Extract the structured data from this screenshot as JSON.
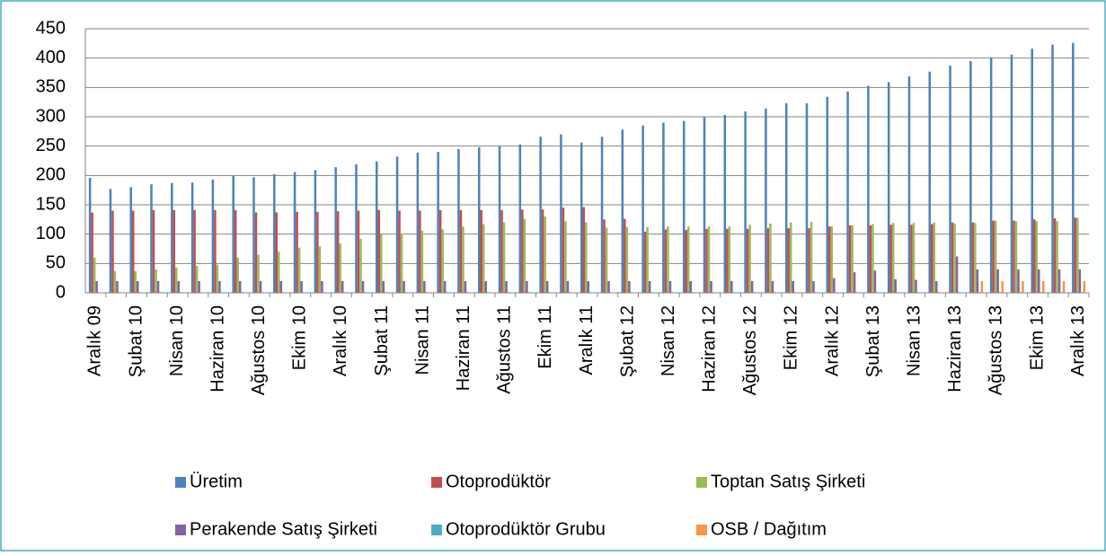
{
  "chart_data": {
    "type": "bar",
    "categories": [
      "Aralık 09",
      null,
      "Şubat 10",
      null,
      "Nisan 10",
      null,
      "Haziran 10",
      null,
      "Ağustos 10",
      null,
      "Ekim 10",
      null,
      "Aralık 10",
      null,
      "Şubat 11",
      null,
      "Nisan 11",
      null,
      "Haziran 11",
      null,
      "Ağustos 11",
      null,
      "Ekim 11",
      null,
      "Aralık 11",
      null,
      "Şubat 12",
      null,
      "Nisan 12",
      null,
      "Haziran 12",
      null,
      "Ağustos 12",
      null,
      "Ekim 12",
      null,
      "Aralık 12",
      null,
      "Şubat 13",
      null,
      "Nisan 13",
      null,
      "Haziran 13",
      null,
      "Ağustos 13",
      null,
      "Ekim 13",
      null,
      "Aralık 13"
    ],
    "series": [
      {
        "name": "Üretim",
        "color": "#4f81bd",
        "values": [
          196,
          177,
          180,
          185,
          187,
          188,
          193,
          199,
          197,
          202,
          206,
          209,
          214,
          219,
          224,
          232,
          239,
          240,
          245,
          248,
          250,
          253,
          266,
          270,
          256,
          266,
          278,
          285,
          290,
          293,
          300,
          303,
          309,
          314,
          323,
          323,
          334,
          343,
          353,
          359,
          369,
          377,
          387,
          395,
          401,
          406,
          416,
          423,
          426
        ]
      },
      {
        "name": "Otoprodüktör",
        "color": "#c0504d",
        "values": [
          137,
          140,
          140,
          141,
          141,
          141,
          141,
          141,
          137,
          137,
          138,
          138,
          139,
          140,
          141,
          140,
          140,
          141,
          141,
          141,
          141,
          142,
          142,
          145,
          146,
          125,
          126,
          104,
          108,
          107,
          109,
          109,
          109,
          110,
          110,
          110,
          113,
          115,
          115,
          116,
          116,
          117,
          120,
          120,
          123,
          123,
          125,
          127,
          128
        ]
      },
      {
        "name": "Toptan Satış Şirketi",
        "color": "#9bbb59",
        "values": [
          60,
          37,
          37,
          40,
          43,
          46,
          48,
          60,
          65,
          70,
          77,
          79,
          84,
          92,
          100,
          101,
          106,
          108,
          113,
          117,
          120,
          126,
          130,
          122,
          120,
          111,
          112,
          112,
          113,
          113,
          113,
          113,
          116,
          118,
          120,
          121,
          113,
          115,
          117,
          119,
          119,
          120,
          118,
          119,
          123,
          122,
          122,
          122,
          128
        ]
      },
      {
        "name": "Perakende Satış Şirketi",
        "color": "#8064a2",
        "values": [
          20,
          20,
          20,
          20,
          20,
          20,
          20,
          20,
          20,
          20,
          20,
          20,
          20,
          20,
          20,
          20,
          20,
          20,
          20,
          20,
          20,
          20,
          20,
          20,
          20,
          20,
          20,
          20,
          20,
          20,
          20,
          20,
          20,
          20,
          20,
          20,
          25,
          35,
          38,
          23,
          22,
          20,
          62,
          40,
          40,
          40,
          40,
          40,
          40
        ]
      },
      {
        "name": "Otoprodüktör Grubu",
        "color": "#4bacc6",
        "values": [
          1,
          1,
          1,
          1,
          1,
          1,
          1,
          1,
          1,
          1,
          1,
          1,
          1,
          1,
          1,
          1,
          1,
          1,
          1,
          1,
          1,
          1,
          1,
          1,
          1,
          1,
          1,
          1,
          1,
          1,
          1,
          1,
          1,
          1,
          1,
          1,
          1,
          1,
          1,
          1,
          1,
          1,
          1,
          1,
          1,
          1,
          1,
          1,
          1
        ]
      },
      {
        "name": "OSB / Dağıtım",
        "color": "#f79646",
        "values": [
          0,
          0,
          0,
          0,
          0,
          0,
          0,
          0,
          0,
          0,
          0,
          0,
          0,
          0,
          0,
          0,
          0,
          0,
          0,
          0,
          0,
          0,
          0,
          0,
          0,
          0,
          0,
          0,
          0,
          0,
          0,
          0,
          0,
          0,
          0,
          0,
          0,
          0,
          0,
          0,
          0,
          0,
          0,
          20,
          20,
          20,
          20,
          20,
          20
        ]
      }
    ],
    "ylim": [
      0,
      450
    ],
    "yticks": [
      0,
      50,
      100,
      150,
      200,
      250,
      300,
      350,
      400,
      450
    ],
    "grid": true
  }
}
